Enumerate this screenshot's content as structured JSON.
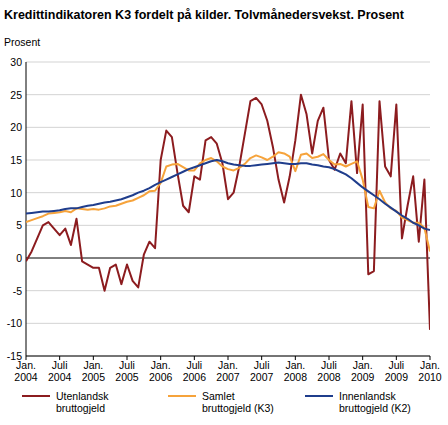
{
  "chart_data": {
    "type": "line",
    "title": "Kredittindikatoren K3 fordelt på kilder. Tolvmånedersvekst. Prosent",
    "y_label": "Prosent",
    "categories": [
      "Jan. 2004",
      null,
      null,
      null,
      null,
      null,
      "Juli 2004",
      null,
      null,
      null,
      null,
      null,
      "Jan. 2005",
      null,
      null,
      null,
      null,
      null,
      "Juli 2005",
      null,
      null,
      null,
      null,
      null,
      "Jan. 2006",
      null,
      null,
      null,
      null,
      null,
      "Juli 2006",
      null,
      null,
      null,
      null,
      null,
      "Jan. 2007",
      null,
      null,
      null,
      null,
      null,
      "Juli 2007",
      null,
      null,
      null,
      null,
      null,
      "Jan. 2008",
      null,
      null,
      null,
      null,
      null,
      "Juli 2008",
      null,
      null,
      null,
      null,
      null,
      "Jan. 2009",
      null,
      null,
      null,
      null,
      null,
      "Juli 2009",
      null,
      null,
      null,
      null,
      null,
      "Jan. 2010"
    ],
    "series": [
      {
        "name": "Utenlandsk bruttogjeld",
        "color": "#8c1c1f",
        "values": [
          -0.5,
          1,
          3,
          5,
          5.5,
          4.5,
          3.5,
          4.5,
          2,
          6,
          -0.5,
          -1,
          -1.5,
          -1.5,
          -5,
          -1.5,
          -1,
          -4,
          -1,
          -3.5,
          -4.5,
          0.5,
          2.5,
          1.5,
          15,
          19.5,
          18.5,
          13,
          8,
          7,
          12.5,
          12,
          18,
          18.5,
          17.5,
          14.5,
          9,
          10,
          14,
          19,
          24,
          24.5,
          23.5,
          21,
          17,
          12,
          8.5,
          12.5,
          18,
          25,
          22,
          16,
          21,
          23,
          15,
          13.5,
          16,
          14.5,
          24,
          13,
          23.5,
          -2.5,
          -2,
          24,
          14,
          12.5,
          23.5,
          3,
          8,
          12.5,
          2.5,
          12,
          -11
        ]
      },
      {
        "name": "Samlet bruttogjeld (K3)",
        "color": "#f6a33b",
        "values": [
          5.5,
          5.8,
          6.1,
          6.4,
          6.8,
          6.9,
          7.0,
          7.2,
          7.0,
          7.6,
          7.5,
          7.4,
          7.5,
          7.4,
          7.6,
          7.9,
          8.0,
          8.3,
          8.6,
          8.8,
          9.2,
          9.6,
          10.2,
          10.3,
          11.5,
          14.0,
          14.3,
          14.4,
          13.9,
          13.4,
          13.4,
          14.5,
          15.0,
          15.3,
          14.8,
          14.0,
          13.6,
          13.4,
          13.8,
          14.4,
          15.3,
          15.7,
          15.4,
          15.0,
          15.5,
          16.2,
          16.0,
          15.5,
          13.3,
          15.8,
          16.0,
          15.3,
          15.5,
          15.9,
          15.0,
          14.3,
          14.4,
          14.0,
          14.4,
          14.8,
          12.0,
          7.8,
          7.6,
          10.3,
          8.5,
          7.6,
          7.2,
          6.2,
          5.8,
          5.4,
          5.4,
          4.6,
          1.0
        ]
      },
      {
        "name": "Innenlandsk bruttogjeld (K2)",
        "color": "#1f3d8c",
        "values": [
          6.8,
          6.9,
          7.0,
          7.1,
          7.1,
          7.2,
          7.3,
          7.5,
          7.6,
          7.6,
          7.8,
          8.0,
          8.1,
          8.3,
          8.5,
          8.6,
          8.8,
          9.0,
          9.3,
          9.6,
          10.0,
          10.3,
          10.7,
          11.2,
          11.6,
          12.0,
          12.4,
          12.8,
          13.2,
          13.6,
          13.9,
          14.2,
          14.5,
          14.8,
          15.0,
          14.8,
          14.5,
          14.3,
          14.2,
          14.1,
          14.1,
          14.2,
          14.3,
          14.4,
          14.5,
          14.6,
          14.5,
          14.4,
          14.4,
          14.5,
          14.5,
          14.3,
          14.2,
          14.0,
          13.9,
          13.6,
          13.2,
          12.8,
          12.2,
          11.5,
          10.8,
          10.2,
          9.6,
          9.0,
          8.3,
          7.7,
          7.1,
          6.5,
          6.0,
          5.4,
          5.0,
          4.5,
          4.3
        ]
      }
    ],
    "ylim": [
      -15,
      30
    ],
    "yticks": [
      -15,
      -10,
      -5,
      0,
      5,
      10,
      15,
      20,
      25,
      30
    ],
    "grid": true,
    "legend": "bottom"
  }
}
